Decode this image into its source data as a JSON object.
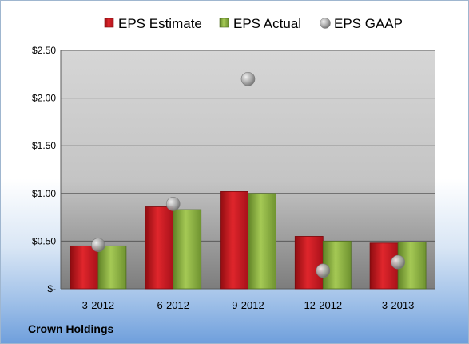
{
  "company": "Crown Holdings",
  "chart_data": {
    "type": "bar",
    "categories": [
      "3-2012",
      "6-2012",
      "9-2012",
      "12-2012",
      "3-2013"
    ],
    "series": [
      {
        "name": "EPS Estimate",
        "kind": "bar",
        "color": "#c0141b",
        "values": [
          0.45,
          0.86,
          1.02,
          0.55,
          0.48
        ]
      },
      {
        "name": "EPS Actual",
        "kind": "bar",
        "color": "#8cb43c",
        "values": [
          0.45,
          0.83,
          1.0,
          0.5,
          0.49
        ]
      },
      {
        "name": "EPS GAAP",
        "kind": "scatter",
        "color": "#b0b0b0",
        "values": [
          0.46,
          0.89,
          2.2,
          0.19,
          0.28
        ]
      }
    ],
    "yticks": [
      "$-",
      "$0.50",
      "$1.00",
      "$1.50",
      "$2.00",
      "$2.50"
    ],
    "ylim": [
      0,
      2.5
    ],
    "grid": true,
    "legend": "top"
  }
}
